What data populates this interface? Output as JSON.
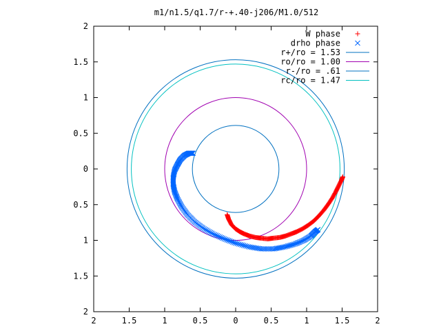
{
  "chart_data": {
    "type": "scatter",
    "title": "m1/n1.5/q1.7/r-+.40-j206/M1.0/512",
    "xlabel": "",
    "ylabel": "",
    "xlim": [
      -2,
      2
    ],
    "ylim": [
      -2,
      2
    ],
    "x_tick_values": [
      -2,
      -1.5,
      -1,
      -0.5,
      0,
      0.5,
      1,
      1.5,
      2
    ],
    "x_tick_labels": [
      "2",
      "1.5",
      "1",
      "0.5",
      "0",
      "0.5",
      "1",
      "1.5",
      "2"
    ],
    "y_tick_values": [
      2,
      1.5,
      1,
      0.5,
      0,
      -0.5,
      -1,
      -1.5,
      -2
    ],
    "y_tick_labels": [
      "2",
      "1.5",
      "1",
      "0.5",
      "0",
      "0.5",
      "1",
      "1.5",
      "2"
    ],
    "grid": false,
    "legend_position": "top-right",
    "series": [
      {
        "name": "W phase",
        "marker": "+",
        "color": "#ff0000",
        "points": [
          [
            -0.12,
            -0.64
          ],
          [
            -0.1,
            -0.7
          ],
          [
            -0.06,
            -0.78
          ],
          [
            0.0,
            -0.84
          ],
          [
            0.06,
            -0.88
          ],
          [
            0.12,
            -0.91
          ],
          [
            0.2,
            -0.94
          ],
          [
            0.28,
            -0.96
          ],
          [
            0.36,
            -0.97
          ],
          [
            0.45,
            -0.98
          ],
          [
            0.53,
            -0.97
          ],
          [
            0.62,
            -0.96
          ],
          [
            0.7,
            -0.94
          ],
          [
            0.78,
            -0.91
          ],
          [
            0.86,
            -0.88
          ],
          [
            0.94,
            -0.84
          ],
          [
            1.02,
            -0.79
          ],
          [
            1.1,
            -0.73
          ],
          [
            1.17,
            -0.66
          ],
          [
            1.24,
            -0.58
          ],
          [
            1.3,
            -0.5
          ],
          [
            1.36,
            -0.41
          ],
          [
            1.41,
            -0.32
          ],
          [
            1.45,
            -0.24
          ],
          [
            1.49,
            -0.16
          ],
          [
            1.51,
            -0.11
          ]
        ]
      },
      {
        "name": "drho phase",
        "marker": "x",
        "color": "#0066ff",
        "points": [
          [
            -0.6,
            0.22
          ],
          [
            -0.66,
            0.22
          ],
          [
            -0.72,
            0.19
          ],
          [
            -0.78,
            0.13
          ],
          [
            -0.82,
            0.06
          ],
          [
            -0.86,
            -0.02
          ],
          [
            -0.88,
            -0.12
          ],
          [
            -0.88,
            -0.22
          ],
          [
            -0.86,
            -0.32
          ],
          [
            -0.82,
            -0.42
          ],
          [
            -0.76,
            -0.53
          ],
          [
            -0.68,
            -0.64
          ],
          [
            -0.58,
            -0.74
          ],
          [
            -0.46,
            -0.83
          ],
          [
            -0.32,
            -0.91
          ],
          [
            -0.16,
            -0.98
          ],
          [
            0.0,
            -1.04
          ],
          [
            0.18,
            -1.09
          ],
          [
            0.36,
            -1.12
          ],
          [
            0.54,
            -1.12
          ],
          [
            0.7,
            -1.09
          ],
          [
            0.84,
            -1.05
          ],
          [
            0.96,
            -1.0
          ],
          [
            1.06,
            -0.94
          ],
          [
            1.12,
            -0.88
          ],
          [
            1.16,
            -0.85
          ]
        ]
      }
    ],
    "circles": [
      {
        "name": "r+/ro = 1.53",
        "radius": 1.53,
        "color": "#0070c0"
      },
      {
        "name": "ro/ro = 1.00",
        "radius": 1.0,
        "color": "#a000b0"
      },
      {
        "name": "r-/ro = .61",
        "radius": 0.61,
        "color": "#0070c0"
      },
      {
        "name": "rc/ro = 1.47",
        "radius": 1.47,
        "color": "#00c0c0"
      }
    ]
  }
}
